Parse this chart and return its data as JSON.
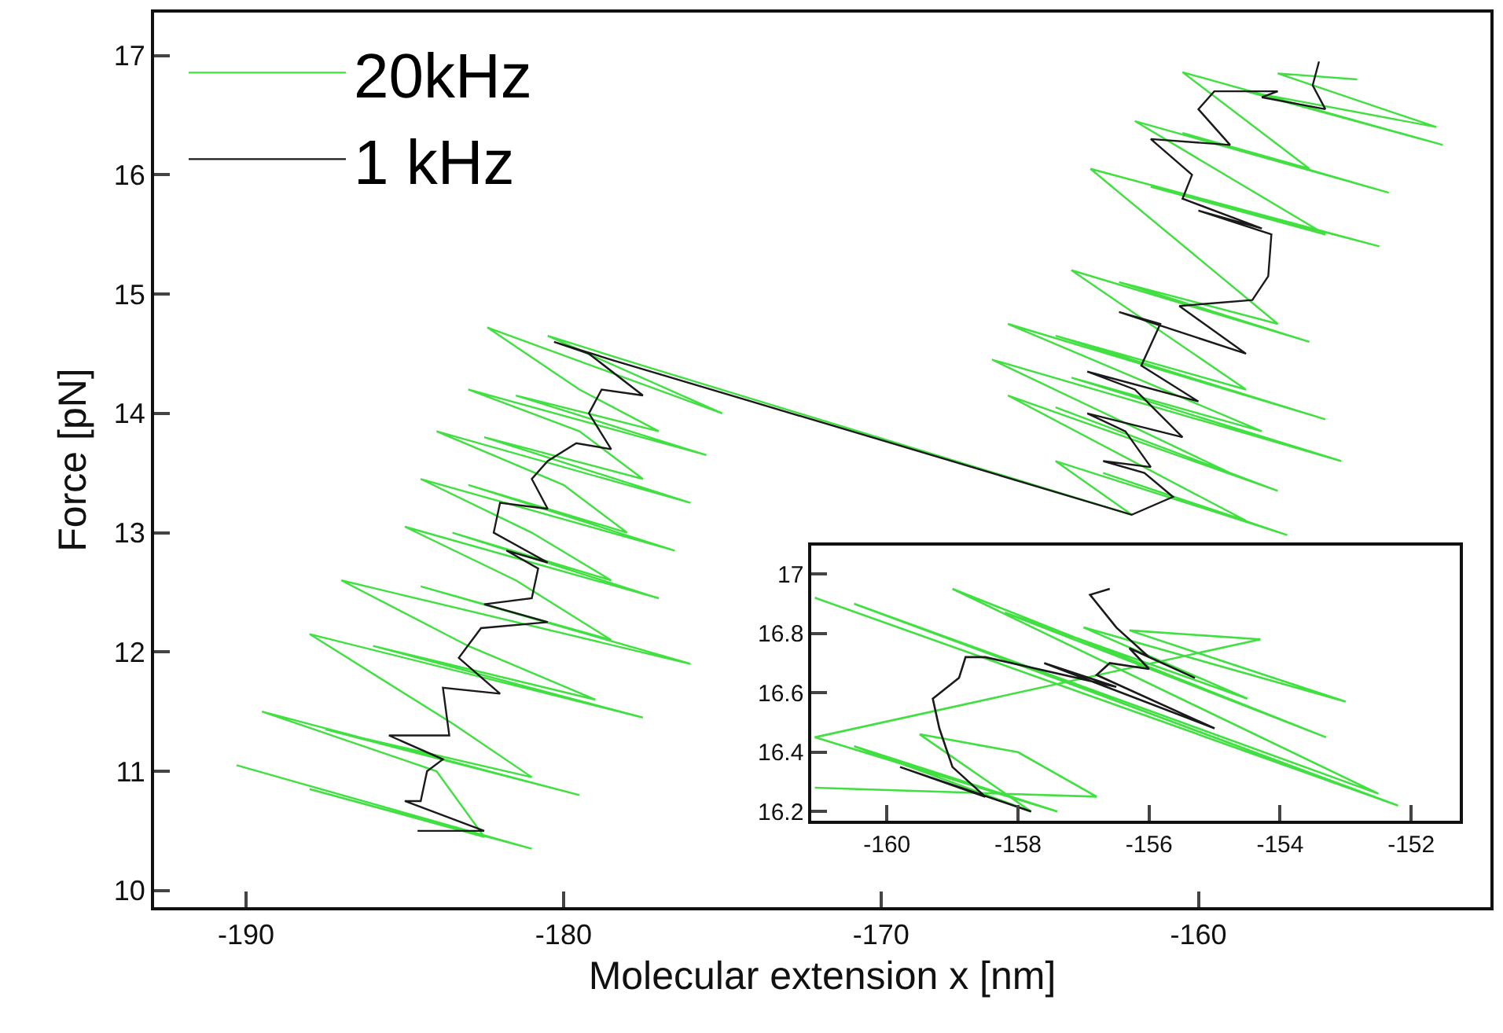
{
  "chart_data": [
    {
      "type": "line",
      "xlabel": "Molecular extension x [nm]",
      "ylabel": "Force [pN]",
      "xlim": [
        -192.9,
        -150.8
      ],
      "ylim": [
        9.86,
        17.36
      ],
      "xticks": [
        -190,
        -180,
        -170,
        -160
      ],
      "yticks": [
        10,
        11,
        12,
        13,
        14,
        15,
        16,
        17
      ],
      "legend": "top left",
      "series": [
        {
          "name": "20kHz",
          "color": "#3fe03f",
          "x": [
            -190.3,
            -181.0,
            -188.0,
            -182.5,
            -184.0,
            -189.5,
            -179.5,
            -187.5,
            -181.0,
            -183.5,
            -188.0,
            -177.5,
            -186.0,
            -179.0,
            -183.0,
            -187.0,
            -176.0,
            -184.5,
            -178.5,
            -181.5,
            -185.0,
            -177.0,
            -183.5,
            -178.5,
            -181.0,
            -184.5,
            -176.5,
            -183.0,
            -178.0,
            -180.0,
            -184.0,
            -176.0,
            -182.5,
            -177.5,
            -179.5,
            -183.0,
            -175.5,
            -181.5,
            -177.0,
            -179.5,
            -182.4,
            -175.0,
            -180.5,
            -177.5,
            -162.1,
            -164.5,
            -157.2,
            -163.0,
            -158.5,
            -166.0,
            -157.5,
            -164.5,
            -159.0,
            -166.5,
            -155.5,
            -164.0,
            -158.0,
            -166.0,
            -156.0,
            -164.5,
            -158.5,
            -164.0,
            -156.5,
            -162.5,
            -157.5,
            -163.4,
            -154.3,
            -161.5,
            -156.0,
            -162.0,
            -154.0,
            -160.5,
            -156.5,
            -160.5,
            -152.3,
            -158.5,
            -152.5,
            -157.5,
            -155.0
          ],
          "values": [
            11.05,
            10.35,
            10.85,
            10.45,
            11.0,
            11.5,
            10.8,
            11.35,
            10.95,
            11.4,
            12.15,
            11.45,
            12.05,
            11.6,
            12.05,
            12.6,
            11.9,
            12.55,
            12.1,
            12.6,
            13.05,
            12.45,
            13.0,
            12.6,
            13.0,
            13.45,
            12.85,
            13.4,
            13.0,
            13.4,
            13.85,
            13.25,
            13.8,
            13.45,
            13.85,
            14.2,
            13.65,
            14.15,
            13.85,
            14.2,
            14.72,
            14.0,
            14.65,
            14.4,
            13.15,
            13.6,
            12.98,
            13.5,
            13.1,
            14.15,
            13.35,
            14.05,
            13.5,
            14.45,
            13.6,
            14.3,
            13.85,
            14.75,
            13.95,
            14.65,
            14.2,
            15.2,
            14.6,
            15.1,
            14.75,
            16.05,
            15.4,
            15.9,
            15.5,
            16.45,
            15.85,
            16.35,
            16.05,
            16.86,
            16.25,
            16.7,
            16.4,
            16.85,
            16.8
          ]
        },
        {
          "name": "1 kHz",
          "color": "#1a1a1a",
          "x": [
            -184.6,
            -182.5,
            -185.0,
            -184.5,
            -184.3,
            -183.8,
            -185.5,
            -183.6,
            -183.8,
            -182.0,
            -183.3,
            -182.6,
            -180.5,
            -182.5,
            -181.0,
            -180.8,
            -181.8,
            -180.5,
            -182.2,
            -182.0,
            -180.5,
            -181.0,
            -180.5,
            -179.6,
            -178.5,
            -179.2,
            -178.8,
            -177.5,
            -179.2,
            -180.3,
            -178.5,
            -162.1,
            -160.8,
            -161.7,
            -163.0,
            -161.5,
            -162.3,
            -163.5,
            -160.5,
            -162.0,
            -163.5,
            -160.0,
            -161.8,
            -161.2,
            -162.5,
            -158.5,
            -160.6,
            -158.3,
            -157.8,
            -157.7,
            -160.0,
            -158.0,
            -160.5,
            -160.2,
            -161.5,
            -159.0,
            -160.0,
            -159.5,
            -157.5,
            -158.0,
            -156.0,
            -156.4,
            -156.2
          ],
          "values": [
            10.5,
            10.5,
            10.75,
            10.75,
            11.0,
            11.1,
            11.3,
            11.3,
            11.7,
            11.65,
            11.95,
            12.2,
            12.25,
            12.4,
            12.45,
            12.7,
            12.85,
            12.75,
            13.0,
            13.25,
            13.2,
            13.45,
            13.6,
            13.75,
            13.7,
            14.0,
            14.2,
            14.15,
            14.5,
            14.6,
            14.45,
            13.15,
            13.3,
            13.5,
            13.6,
            13.55,
            13.85,
            14.0,
            13.8,
            14.2,
            14.35,
            14.1,
            14.4,
            14.75,
            14.85,
            14.5,
            14.9,
            14.95,
            15.15,
            15.5,
            15.7,
            15.55,
            15.8,
            16.0,
            16.3,
            16.25,
            16.55,
            16.7,
            16.7,
            16.65,
            16.55,
            16.75,
            16.95
          ]
        }
      ]
    },
    {
      "type": "line",
      "xlim": [
        -161.15,
        -151.26
      ],
      "ylim": [
        16.17,
        17.095
      ],
      "xticks": [
        -160,
        -158,
        -156,
        -154,
        -152
      ],
      "yticks": [
        16.2,
        16.4,
        16.6,
        16.8,
        17
      ],
      "series": [
        {
          "color": "#3fe03f",
          "x": [
            -161.1,
            -152.2,
            -160.5,
            -152.5,
            -159.0,
            -153.3,
            -158.2,
            -154.5,
            -157.0,
            -153.0,
            -156.3,
            -154.3,
            -161.1,
            -157.4,
            -160.5,
            -157.8,
            -159.5,
            -158.0,
            -156.8,
            -161.1
          ],
          "values": [
            16.92,
            16.22,
            16.9,
            16.26,
            16.95,
            16.45,
            16.87,
            16.58,
            16.82,
            16.57,
            16.81,
            16.78,
            16.45,
            16.2,
            16.42,
            16.2,
            16.46,
            16.4,
            16.25,
            16.28
          ]
        },
        {
          "color": "#1a1a1a",
          "x": [
            -157.8,
            -159.8,
            -158.5,
            -159.0,
            -159.2,
            -159.3,
            -158.9,
            -158.8,
            -158.5,
            -156.5,
            -157.6,
            -155.0,
            -156.8,
            -156.6,
            -156.0,
            -156.3,
            -155.3,
            -156.0,
            -156.5,
            -156.9,
            -156.6
          ],
          "values": [
            16.2,
            16.35,
            16.25,
            16.35,
            16.48,
            16.58,
            16.65,
            16.72,
            16.72,
            16.62,
            16.7,
            16.48,
            16.66,
            16.7,
            16.68,
            16.75,
            16.65,
            16.72,
            16.82,
            16.93,
            16.95
          ]
        }
      ]
    }
  ]
}
